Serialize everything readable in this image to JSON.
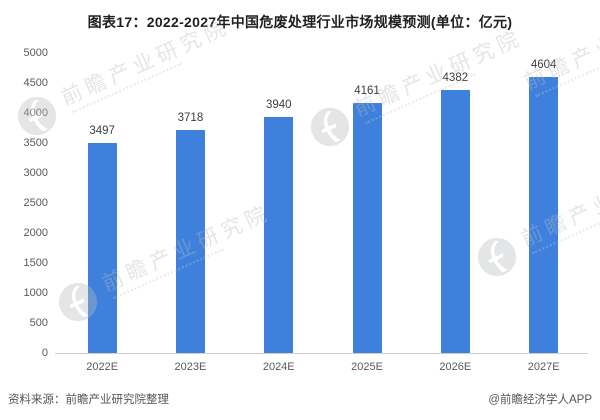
{
  "title": "图表17：2022-2027年中国危废处理行业市场规模预测(单位：亿元)",
  "chart_data": {
    "type": "bar",
    "categories": [
      "2022E",
      "2023E",
      "2024E",
      "2025E",
      "2026E",
      "2027E"
    ],
    "values": [
      3497,
      3718,
      3940,
      4161,
      4382,
      4604
    ],
    "title": "图表17：2022-2027年中国危废处理行业市场规模预测(单位：亿元)",
    "xlabel": "",
    "ylabel": "",
    "ylim": [
      0,
      5000
    ],
    "yticks": [
      0,
      500,
      1000,
      1500,
      2000,
      2500,
      3000,
      3500,
      4000,
      4500,
      5000
    ],
    "grid": false,
    "legend": "none",
    "value_labels": true,
    "bar_color": "#3e80dc",
    "axis_line_color": "#cfcfcf"
  },
  "footer": {
    "source": "资料来源：前瞻产业研究院整理",
    "credit": "@前瞻经济学人APP"
  },
  "watermark": {
    "text": "前瞻产业研究院",
    "logo": "forward-globe-logo",
    "color": "#b9bcbe"
  }
}
